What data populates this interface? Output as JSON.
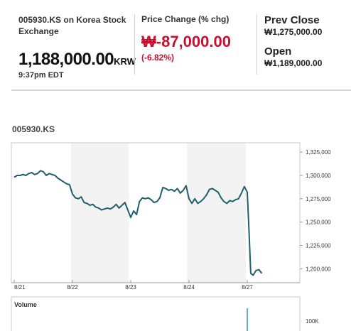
{
  "quote": {
    "exchange_label": "005930.KS on Korea Stock Exchange",
    "last_price": "1,188,000.00",
    "currency": "KRW",
    "time": "9:37pm EDT",
    "change_label": "Price Change (% chg)",
    "change_symbol": "₩",
    "change_value": "-87,000.00",
    "change_pct": "(-6.82%)",
    "prev_close_label": "Prev Close",
    "prev_close_value": "₩1,275,000.00",
    "open_label": "Open",
    "open_value": "₩1,189,000.00"
  },
  "chart": {
    "ticker": "005930.KS",
    "volume_label": "Volume",
    "volume_tick": "100K"
  },
  "colors": {
    "line": "#1f5f6b",
    "negative": "#c8102e",
    "shade": "#f3f3f3"
  },
  "chart_data": {
    "type": "line",
    "title": "005930.KS",
    "x_ticks": [
      "8/21",
      "8/22",
      "8/23",
      "8/24",
      "8/27"
    ],
    "y_ticks": [
      "1,325,000",
      "1,300,000",
      "1,275,000",
      "1,250,000",
      "1,225,000",
      "1,200,000"
    ],
    "ylim": [
      1185000,
      1335000
    ],
    "grid": false,
    "series": [
      {
        "x": [
          0,
          0.05,
          0.1,
          0.15,
          0.2,
          0.25,
          0.3,
          0.35,
          0.4,
          0.45,
          0.5,
          0.55,
          0.6,
          0.65,
          0.7,
          0.75,
          0.8,
          0.85,
          0.9,
          0.95,
          1.0,
          1.05,
          1.1,
          1.15,
          1.2,
          1.25,
          1.3,
          1.35,
          1.4,
          1.45,
          1.5,
          1.55,
          1.6,
          1.65,
          1.7,
          1.75,
          1.8,
          1.85,
          1.9,
          1.95,
          2.0,
          2.05,
          2.1,
          2.15,
          2.2,
          2.25,
          2.3,
          2.35,
          2.4,
          2.45,
          2.5,
          2.55,
          2.6,
          2.65,
          2.7,
          2.75,
          2.8,
          2.85,
          2.9,
          2.95,
          3.0,
          3.05,
          3.1,
          3.15,
          3.2,
          3.25,
          3.3,
          3.35,
          3.4,
          3.45,
          3.5,
          3.55,
          3.6,
          3.65,
          3.7,
          3.75,
          3.8,
          3.85,
          3.9,
          3.95,
          4.0,
          4.03,
          4.06,
          4.1,
          4.15,
          4.2,
          4.25
        ],
        "values": [
          1298000,
          1300000,
          1300000,
          1301000,
          1300000,
          1302000,
          1303000,
          1301000,
          1302000,
          1305000,
          1304000,
          1300000,
          1302000,
          1301000,
          1300000,
          1297000,
          1295000,
          1293000,
          1291000,
          1290000,
          1280000,
          1276000,
          1275000,
          1277000,
          1271000,
          1270000,
          1268000,
          1269000,
          1266000,
          1265000,
          1263000,
          1264000,
          1265000,
          1264000,
          1266000,
          1269000,
          1265000,
          1268000,
          1271000,
          1263000,
          1255000,
          1262000,
          1258000,
          1272000,
          1276000,
          1275000,
          1276000,
          1274000,
          1271000,
          1272000,
          1276000,
          1287000,
          1286000,
          1284000,
          1285000,
          1283000,
          1286000,
          1281000,
          1284000,
          1289000,
          1275000,
          1270000,
          1275000,
          1270000,
          1272000,
          1275000,
          1279000,
          1285000,
          1286000,
          1284000,
          1282000,
          1276000,
          1272000,
          1270000,
          1273000,
          1272000,
          1274000,
          1275000,
          1281000,
          1288000,
          1282000,
          1240000,
          1195000,
          1193000,
          1198000,
          1199000,
          1195000
        ]
      }
    ]
  }
}
